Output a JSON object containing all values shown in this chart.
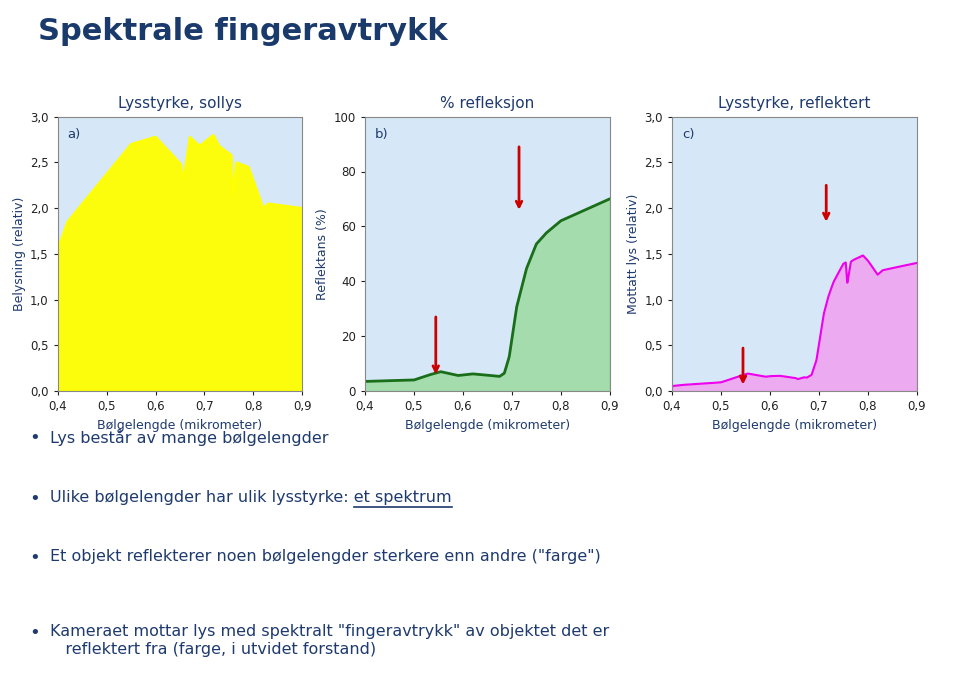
{
  "title": "Spektrale fingeravtrykk",
  "title_color": "#1a3a6b",
  "background_color": "#ffffff",
  "plot_bg_color": "#d6e8f7",
  "chart_a_title": "Lysstyrke, sollys",
  "chart_b_title": "% refleksjon",
  "chart_c_title": "Lysstyrke, reflektert",
  "chart_a_ylabel": "Belysning (relativ)",
  "chart_b_ylabel": "Reflektans (%)",
  "chart_c_ylabel": "Mottatt lys (relativ)",
  "xlabel": "Bølgelengde (mikrometer)",
  "xlim": [
    0.4,
    0.9
  ],
  "xtick_vals": [
    0.4,
    0.5,
    0.6,
    0.7,
    0.8,
    0.9
  ],
  "xtick_labels": [
    "0,4",
    "0,5",
    "0,6",
    "0,7",
    "0,8",
    "0,9"
  ],
  "chart_a_ylim": [
    0.0,
    3.0
  ],
  "chart_a_ytick_vals": [
    0.0,
    0.5,
    1.0,
    1.5,
    2.0,
    2.5,
    3.0
  ],
  "chart_a_ytick_labels": [
    "0,0",
    "0,5",
    "1,0",
    "1,5",
    "2,0",
    "2,5",
    "3,0"
  ],
  "chart_b_ylim": [
    0,
    100
  ],
  "chart_b_ytick_vals": [
    0,
    20,
    40,
    60,
    80,
    100
  ],
  "chart_b_ytick_labels": [
    "0",
    "20",
    "40",
    "60",
    "80",
    "100"
  ],
  "chart_c_ylim": [
    0.0,
    3.0
  ],
  "chart_c_ytick_vals": [
    0.0,
    0.5,
    1.0,
    1.5,
    2.0,
    2.5,
    3.0
  ],
  "chart_c_ytick_labels": [
    "0,0",
    "0,5",
    "1,0",
    "1,5",
    "2,0",
    "2,5",
    "3,0"
  ],
  "line_a_color": "#ffff00",
  "line_b_color": "#1a6e1a",
  "line_c_color": "#ee00ee",
  "arrow_color": "#cc0000",
  "label_color": "#1e3a6e",
  "bullets": [
    "Lys består av mange bølgelengder",
    "Ulike bølgelengder har ulik lysstyrke: et spektrum",
    "Et objekt reflekterer noen bølgelengder sterkere enn andre (\"farge\")",
    "Kameraet mottar lys med spektralt \"fingeravtrykk\" av objektet det er\n   reflektert fra (farge, i utvidet forstand)"
  ],
  "underline_word": "et spektrum",
  "underline_bullet_idx": 1
}
